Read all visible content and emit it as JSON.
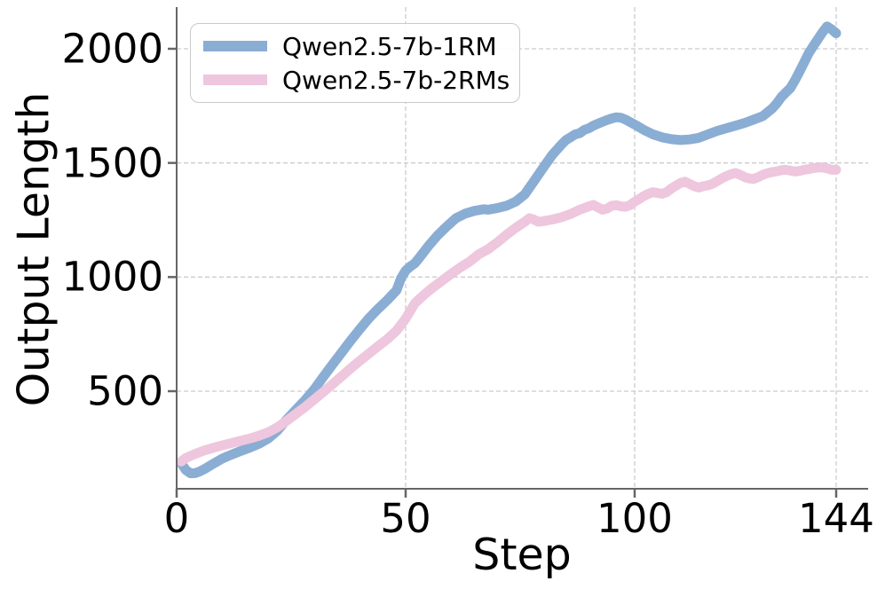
{
  "chart_data": {
    "type": "line",
    "title": "",
    "xlabel": "Step",
    "ylabel": "Output Length",
    "xlim": [
      0,
      151
    ],
    "ylim": [
      73,
      2183
    ],
    "grid": true,
    "legend_position": "upper left",
    "x_ticks": [
      {
        "value": 0,
        "label": "0"
      },
      {
        "value": 50,
        "label": "50"
      },
      {
        "value": 100,
        "label": "100"
      },
      {
        "value": 144,
        "label": "144"
      }
    ],
    "y_ticks": [
      {
        "value": 500,
        "label": "500"
      },
      {
        "value": 1000,
        "label": "1000"
      },
      {
        "value": 1500,
        "label": "1500"
      },
      {
        "value": 2000,
        "label": "2000"
      }
    ],
    "styles": {
      "grid_color": "#cccccc",
      "spine_color": "#666666",
      "tick_color": "#666666",
      "text_color": "#000000",
      "line_width": 11
    },
    "series": [
      {
        "name": "Qwen2.5-7b-1RM",
        "color": "#8aadd4",
        "points": [
          [
            1,
            185
          ],
          [
            2,
            155
          ],
          [
            3,
            140
          ],
          [
            4,
            141
          ],
          [
            5,
            148
          ],
          [
            6,
            158
          ],
          [
            8,
            182
          ],
          [
            10,
            205
          ],
          [
            12,
            222
          ],
          [
            14,
            238
          ],
          [
            16,
            253
          ],
          [
            18,
            270
          ],
          [
            20,
            293
          ],
          [
            22,
            327
          ],
          [
            24,
            375
          ],
          [
            26,
            418
          ],
          [
            28,
            460
          ],
          [
            30,
            507
          ],
          [
            32,
            562
          ],
          [
            34,
            616
          ],
          [
            36,
            669
          ],
          [
            38,
            722
          ],
          [
            40,
            772
          ],
          [
            42,
            820
          ],
          [
            44,
            861
          ],
          [
            46,
            899
          ],
          [
            48,
            942
          ],
          [
            49,
            995
          ],
          [
            50,
            1028
          ],
          [
            51,
            1046
          ],
          [
            52,
            1060
          ],
          [
            53,
            1085
          ],
          [
            55,
            1137
          ],
          [
            57,
            1183
          ],
          [
            59,
            1222
          ],
          [
            61,
            1258
          ],
          [
            63,
            1278
          ],
          [
            65,
            1290
          ],
          [
            67,
            1297
          ],
          [
            68,
            1295
          ],
          [
            70,
            1302
          ],
          [
            72,
            1312
          ],
          [
            74,
            1330
          ],
          [
            76,
            1362
          ],
          [
            78,
            1420
          ],
          [
            80,
            1478
          ],
          [
            82,
            1535
          ],
          [
            84,
            1580
          ],
          [
            85,
            1600
          ],
          [
            86,
            1612
          ],
          [
            87,
            1625
          ],
          [
            88,
            1630
          ],
          [
            89,
            1645
          ],
          [
            90,
            1652
          ],
          [
            91,
            1663
          ],
          [
            92,
            1672
          ],
          [
            93,
            1680
          ],
          [
            94,
            1688
          ],
          [
            95,
            1695
          ],
          [
            96,
            1700
          ],
          [
            97,
            1698
          ],
          [
            98,
            1690
          ],
          [
            100,
            1668
          ],
          [
            102,
            1645
          ],
          [
            104,
            1625
          ],
          [
            106,
            1612
          ],
          [
            108,
            1604
          ],
          [
            110,
            1600
          ],
          [
            112,
            1603
          ],
          [
            114,
            1610
          ],
          [
            116,
            1625
          ],
          [
            118,
            1640
          ],
          [
            120,
            1652
          ],
          [
            122,
            1663
          ],
          [
            124,
            1675
          ],
          [
            126,
            1690
          ],
          [
            128,
            1705
          ],
          [
            130,
            1738
          ],
          [
            131,
            1760
          ],
          [
            132,
            1788
          ],
          [
            133,
            1808
          ],
          [
            134,
            1828
          ],
          [
            135,
            1862
          ],
          [
            136,
            1900
          ],
          [
            137,
            1940
          ],
          [
            138,
            1980
          ],
          [
            139,
            2012
          ],
          [
            140,
            2042
          ],
          [
            141,
            2072
          ],
          [
            142,
            2098
          ],
          [
            143,
            2085
          ],
          [
            144,
            2068
          ]
        ]
      },
      {
        "name": "Qwen2.5-7b-2RMs",
        "color": "#eec6dd",
        "points": [
          [
            1,
            192
          ],
          [
            2,
            207
          ],
          [
            4,
            225
          ],
          [
            6,
            240
          ],
          [
            8,
            252
          ],
          [
            10,
            263
          ],
          [
            12,
            273
          ],
          [
            14,
            283
          ],
          [
            16,
            293
          ],
          [
            18,
            305
          ],
          [
            20,
            320
          ],
          [
            22,
            342
          ],
          [
            24,
            370
          ],
          [
            26,
            400
          ],
          [
            28,
            430
          ],
          [
            30,
            463
          ],
          [
            32,
            496
          ],
          [
            34,
            530
          ],
          [
            36,
            565
          ],
          [
            38,
            600
          ],
          [
            40,
            633
          ],
          [
            42,
            665
          ],
          [
            44,
            697
          ],
          [
            46,
            728
          ],
          [
            48,
            765
          ],
          [
            50,
            818
          ],
          [
            52,
            885
          ],
          [
            54,
            922
          ],
          [
            56,
            955
          ],
          [
            58,
            985
          ],
          [
            60,
            1015
          ],
          [
            62,
            1043
          ],
          [
            64,
            1068
          ],
          [
            66,
            1100
          ],
          [
            68,
            1122
          ],
          [
            70,
            1152
          ],
          [
            72,
            1185
          ],
          [
            74,
            1215
          ],
          [
            76,
            1242
          ],
          [
            77,
            1258
          ],
          [
            78,
            1252
          ],
          [
            79,
            1242
          ],
          [
            80,
            1245
          ],
          [
            82,
            1252
          ],
          [
            84,
            1262
          ],
          [
            86,
            1276
          ],
          [
            88,
            1295
          ],
          [
            90,
            1310
          ],
          [
            91,
            1316
          ],
          [
            92,
            1305
          ],
          [
            93,
            1295
          ],
          [
            94,
            1300
          ],
          [
            95,
            1312
          ],
          [
            96,
            1315
          ],
          [
            97,
            1310
          ],
          [
            98,
            1308
          ],
          [
            99,
            1315
          ],
          [
            100,
            1330
          ],
          [
            101,
            1342
          ],
          [
            102,
            1355
          ],
          [
            103,
            1365
          ],
          [
            104,
            1372
          ],
          [
            105,
            1368
          ],
          [
            106,
            1365
          ],
          [
            107,
            1372
          ],
          [
            108,
            1388
          ],
          [
            109,
            1400
          ],
          [
            110,
            1412
          ],
          [
            111,
            1418
          ],
          [
            112,
            1408
          ],
          [
            113,
            1398
          ],
          [
            114,
            1392
          ],
          [
            115,
            1398
          ],
          [
            116,
            1402
          ],
          [
            117,
            1408
          ],
          [
            118,
            1420
          ],
          [
            119,
            1432
          ],
          [
            120,
            1442
          ],
          [
            121,
            1450
          ],
          [
            122,
            1456
          ],
          [
            123,
            1448
          ],
          [
            124,
            1438
          ],
          [
            125,
            1432
          ],
          [
            126,
            1430
          ],
          [
            127,
            1438
          ],
          [
            128,
            1448
          ],
          [
            129,
            1455
          ],
          [
            130,
            1460
          ],
          [
            131,
            1463
          ],
          [
            132,
            1468
          ],
          [
            133,
            1470
          ],
          [
            134,
            1466
          ],
          [
            135,
            1462
          ],
          [
            136,
            1465
          ],
          [
            137,
            1470
          ],
          [
            138,
            1473
          ],
          [
            139,
            1477
          ],
          [
            140,
            1480
          ],
          [
            141,
            1480
          ],
          [
            142,
            1476
          ],
          [
            143,
            1470
          ],
          [
            144,
            1470
          ]
        ]
      }
    ]
  }
}
